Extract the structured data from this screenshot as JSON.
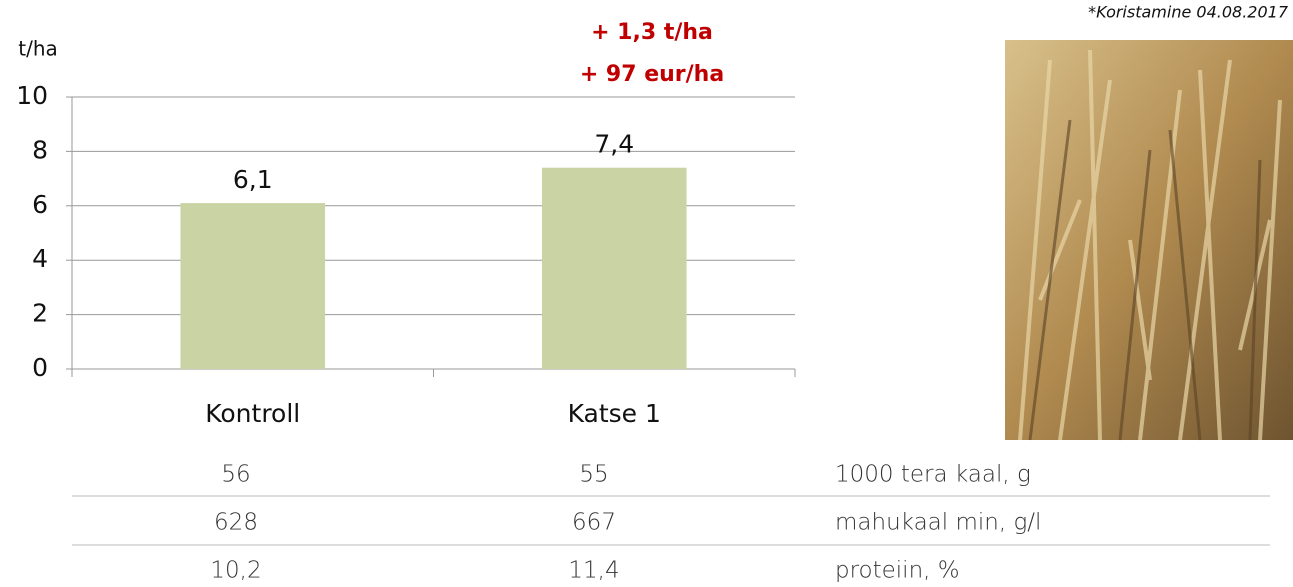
{
  "chart_data": {
    "type": "bar",
    "y_label": "t/ha",
    "categories": [
      "Kontroll",
      "Katse 1"
    ],
    "values": [
      6.1,
      7.4
    ],
    "value_labels": [
      "6,1",
      "7,4"
    ],
    "color": "#c9d3a3",
    "ylim": [
      0,
      10
    ],
    "yticks": [
      0,
      2,
      4,
      6,
      8,
      10
    ],
    "grid": true,
    "annotations": [
      "+ 1,3 t/ha",
      "+ 97 eur/ha"
    ],
    "note": "*Koristamine 04.08.2017"
  },
  "table": {
    "rows": [
      [
        "56",
        "55",
        "1000 tera kaal, g"
      ],
      [
        "628",
        "667",
        "mahukaal min, g/l"
      ],
      [
        "10,2",
        "11,4",
        "proteiin, %"
      ]
    ]
  }
}
